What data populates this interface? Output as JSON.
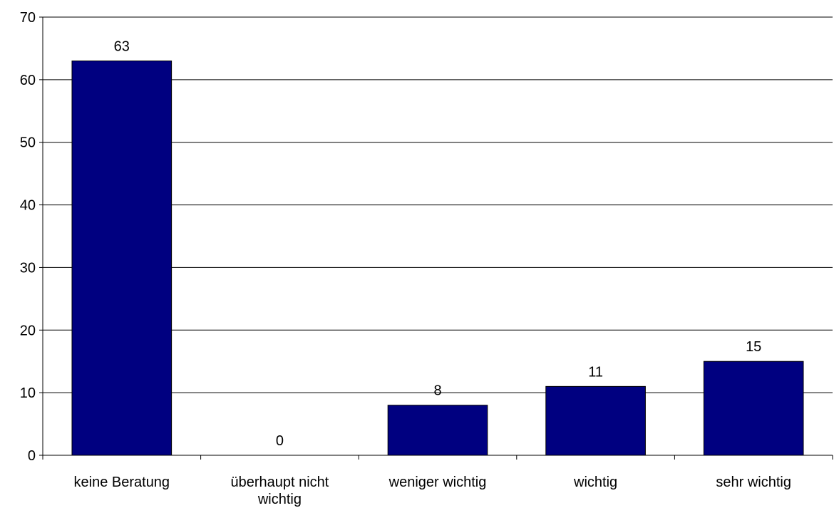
{
  "chart_data": {
    "type": "bar",
    "categories": [
      [
        "keine Beratung"
      ],
      [
        "überhaupt nicht",
        "wichtig"
      ],
      [
        "weniger wichtig"
      ],
      [
        "wichtig"
      ],
      [
        "sehr wichtig"
      ]
    ],
    "values": [
      63,
      0,
      8,
      11,
      15
    ],
    "data_labels": [
      "63",
      "0",
      "8",
      "11",
      "15"
    ],
    "yticks": [
      "0",
      "10",
      "20",
      "30",
      "40",
      "50",
      "60",
      "70"
    ],
    "ylim": [
      0,
      70
    ],
    "grid": true,
    "legend": "none",
    "colors": {
      "bar_fill": "#000080",
      "bar_stroke": "#000000",
      "grid": "#000000",
      "axis": "#000000"
    }
  }
}
